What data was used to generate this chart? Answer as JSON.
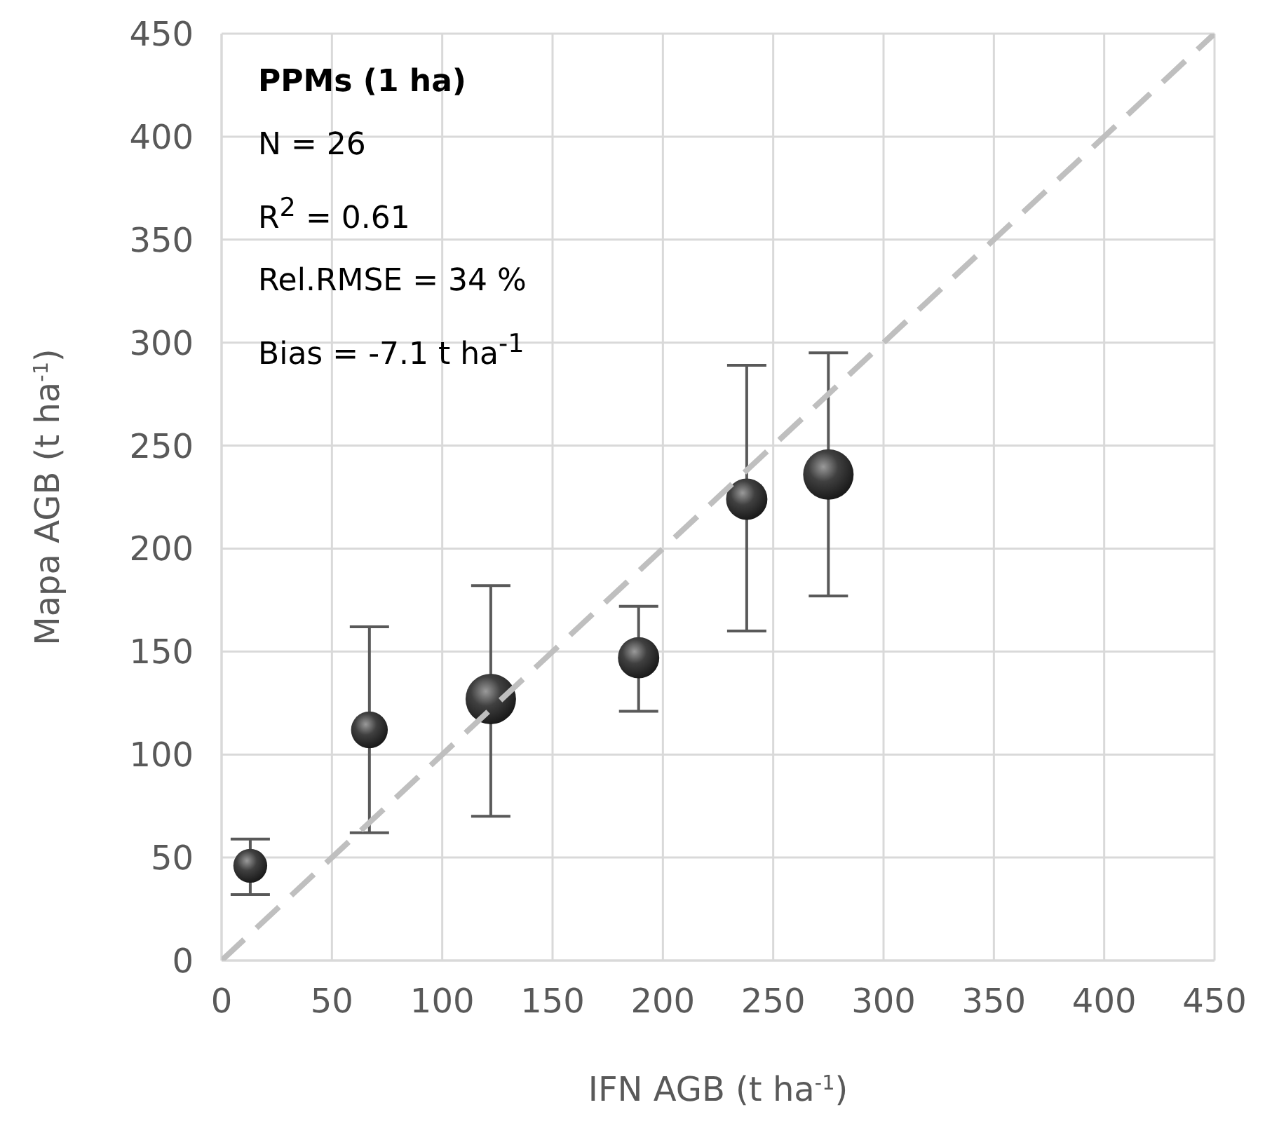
{
  "chart_data": {
    "type": "bubble",
    "xlabel": "IFN AGB (t ha$^{-1}$)",
    "ylabel": "Mapa AGB (t ha$^{-1}$)",
    "xlim": [
      0,
      450
    ],
    "xticks": [
      0,
      50,
      100,
      150,
      200,
      250,
      300,
      350,
      400,
      450
    ],
    "ylim": [
      0,
      450
    ],
    "yticks": [
      0,
      50,
      100,
      150,
      200,
      250,
      300,
      350,
      400,
      450
    ],
    "grid": true,
    "annotations": [
      "PPMs (1 ha)",
      "N = 26",
      "R$^{2}$ = 0.61",
      "Rel.RMSE = 34 %",
      "Bias = -7.1 t ha$^{-1}$"
    ],
    "series": [
      {
        "color": "#404040",
        "x": [
          13,
          67,
          122,
          189,
          238,
          275
        ],
        "values": [
          46,
          112,
          127,
          147,
          224,
          236
        ],
        "sizes": [
          0.45,
          0.53,
          1,
          0.67,
          0.67,
          1
        ],
        "errors": [
          [
            32,
            59
          ],
          [
            62,
            162
          ],
          [
            70,
            182
          ],
          [
            121,
            172
          ],
          [
            160,
            289
          ],
          [
            177,
            295
          ]
        ]
      },
      {
        "type": "line",
        "color": "#bfbfbf",
        "line_style": "dashed",
        "marker": "none",
        "x": [
          0,
          450
        ],
        "values": [
          0,
          450
        ]
      }
    ]
  }
}
